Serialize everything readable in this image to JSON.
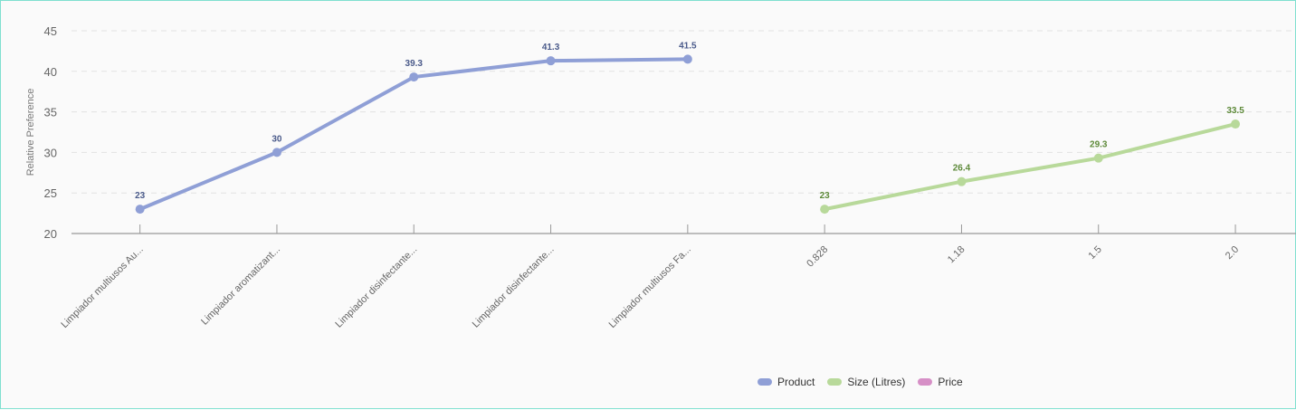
{
  "chart_data": {
    "type": "line",
    "title": "",
    "xlabel": "",
    "ylabel": "Relative Preference",
    "ylim": [
      20,
      45
    ],
    "yticks": [
      20,
      25,
      30,
      35,
      40,
      45
    ],
    "grid": true,
    "legend_position": "bottom-right",
    "categories": [
      "Limpiador multiusos Au...",
      "Limpiador aromatizant...",
      "Limpiador disinfectante...",
      "Limpiador disinfectante...",
      "Limpiador multiusos Fa...",
      "0.828",
      "1.18",
      "1.5",
      "2.0"
    ],
    "series": [
      {
        "name": "Product",
        "color": "#8f9fd6",
        "label_color": "#4a5a8a",
        "x_index": [
          0,
          1,
          2,
          3,
          4
        ],
        "values": [
          23,
          30,
          39.3,
          41.3,
          41.5
        ],
        "labels": [
          "23",
          "30",
          "39.3",
          "41.3",
          "41.5"
        ]
      },
      {
        "name": "Size (Litres)",
        "color": "#b8d99a",
        "label_color": "#5e8a3a",
        "x_index": [
          5,
          6,
          7,
          8
        ],
        "values": [
          23,
          26.4,
          29.3,
          33.5
        ],
        "labels": [
          "23",
          "26.4",
          "29.3",
          "33.5"
        ]
      },
      {
        "name": "Price",
        "color": "#d68fc6",
        "label_color": "#8a4a7a",
        "x_index": [],
        "values": [],
        "labels": []
      }
    ]
  },
  "legend": {
    "items": [
      {
        "label": "Product",
        "color": "#8f9fd6"
      },
      {
        "label": "Size (Litres)",
        "color": "#b8d99a"
      },
      {
        "label": "Price",
        "color": "#d68fc6"
      }
    ]
  }
}
